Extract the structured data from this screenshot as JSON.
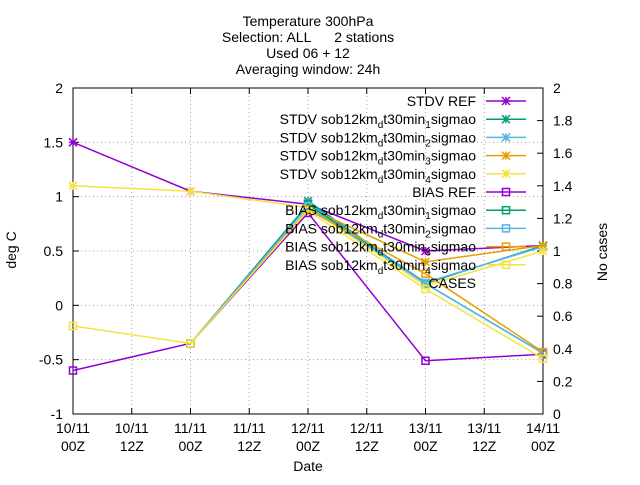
{
  "chart_data": {
    "type": "line",
    "title_lines": [
      "Temperature 300hPa",
      "Selection: ALL      2 stations",
      "Used 06 + 12",
      "Averaging window: 24h"
    ],
    "xlabel": "Date",
    "ylabel": "deg C",
    "y2label": "No cases",
    "x_ticks": [
      {
        "x": 0,
        "l1": "10/11",
        "l2": "00Z"
      },
      {
        "x": 1,
        "l1": "10/11",
        "l2": "12Z"
      },
      {
        "x": 2,
        "l1": "11/11",
        "l2": "00Z"
      },
      {
        "x": 3,
        "l1": "11/11",
        "l2": "12Z"
      },
      {
        "x": 4,
        "l1": "12/11",
        "l2": "00Z"
      },
      {
        "x": 5,
        "l1": "12/11",
        "l2": "12Z"
      },
      {
        "x": 6,
        "l1": "13/11",
        "l2": "00Z"
      },
      {
        "x": 7,
        "l1": "13/11",
        "l2": "12Z"
      },
      {
        "x": 8,
        "l1": "14/11",
        "l2": "00Z"
      }
    ],
    "xlim": [
      0,
      8
    ],
    "ylim": [
      -1,
      2
    ],
    "y_ticks": [
      "-1",
      "-0.5",
      "0",
      "0.5",
      "1",
      "1.5",
      "2"
    ],
    "y2lim": [
      0,
      2
    ],
    "y2_ticks": [
      "0",
      "0.2",
      "0.4",
      "0.6",
      "0.8",
      "1",
      "1.2",
      "1.4",
      "1.6",
      "1.8",
      "2"
    ],
    "grid": true,
    "legend_position": "top-right",
    "x": [
      0,
      2,
      4,
      6,
      8
    ],
    "series": [
      {
        "name": "STDV REF",
        "color": "#9400d3",
        "marker": "star",
        "axis": "y1",
        "values": [
          1.5,
          1.05,
          0.93,
          0.5,
          0.55
        ]
      },
      {
        "name": "STDV sob12km_dt30min_1sigmao",
        "color": "#009e73",
        "marker": "star",
        "axis": "y1",
        "values": [
          null,
          null,
          0.96,
          0.2,
          0.55
        ]
      },
      {
        "name": "STDV sob12km_dt30min_2sigmao",
        "color": "#56b4e9",
        "marker": "star",
        "axis": "y1",
        "values": [
          null,
          null,
          0.94,
          0.21,
          0.54
        ]
      },
      {
        "name": "STDV sob12km_dt30min_3sigmao",
        "color": "#e69f00",
        "marker": "star",
        "axis": "y1",
        "values": [
          null,
          null,
          0.9,
          0.4,
          0.55
        ]
      },
      {
        "name": "STDV sob12km_dt30min_4sigmao",
        "color": "#f0e442",
        "marker": "star",
        "axis": "y1",
        "values": [
          1.1,
          1.05,
          0.9,
          0.18,
          0.5
        ]
      },
      {
        "name": "BIAS REF",
        "color": "#9400d3",
        "marker": "square",
        "axis": "y1",
        "values": [
          -0.6,
          -0.35,
          0.85,
          -0.51,
          -0.45
        ]
      },
      {
        "name": "BIAS sob12km_dt30min_1sigmao",
        "color": "#009e73",
        "marker": "square",
        "axis": "y1",
        "values": [
          null,
          -0.35,
          0.93,
          0.2,
          -0.44
        ]
      },
      {
        "name": "BIAS sob12km_dt30min_2sigmao",
        "color": "#56b4e9",
        "marker": "square",
        "axis": "y1",
        "values": [
          null,
          -0.35,
          0.91,
          0.2,
          -0.44
        ]
      },
      {
        "name": "BIAS sob12km_dt30min_3sigmao",
        "color": "#e69f00",
        "marker": "square",
        "axis": "y1",
        "values": [
          null,
          -0.35,
          0.88,
          0.29,
          -0.43
        ]
      },
      {
        "name": "BIAS sob12km_dt30min_4sigmao",
        "color": "#f0e442",
        "marker": "square",
        "axis": "y1",
        "values": [
          -0.19,
          -0.35,
          0.87,
          0.15,
          -0.49
        ]
      }
    ],
    "legend": [
      {
        "pre": "STDV REF",
        "sub": "",
        "post": ""
      },
      {
        "pre": "STDV sob12km",
        "sub": "d",
        "post": "t30min",
        "sub2": "1",
        "post2": "sigmao"
      },
      {
        "pre": "STDV sob12km",
        "sub": "d",
        "post": "t30min",
        "sub2": "2",
        "post2": "sigmao"
      },
      {
        "pre": "STDV sob12km",
        "sub": "d",
        "post": "t30min",
        "sub2": "3",
        "post2": "sigmao"
      },
      {
        "pre": "STDV sob12km",
        "sub": "d",
        "post": "t30min",
        "sub2": "4",
        "post2": "sigmao"
      },
      {
        "pre": "BIAS REF",
        "sub": "",
        "post": ""
      },
      {
        "pre": "BIAS sob12km",
        "sub": "d",
        "post": "t30min",
        "sub2": "1",
        "post2": "sigmao"
      },
      {
        "pre": "BIAS sob12km",
        "sub": "d",
        "post": "t30min",
        "sub2": "2",
        "post2": "sigmao"
      },
      {
        "pre": "BIAS sob12km",
        "sub": "d",
        "post": "t30min",
        "sub2": "3",
        "post2": "sigmao"
      },
      {
        "pre": "BIAS sob12km",
        "sub": "d",
        "post": "t30min",
        "sub2": "4",
        "post2": "sigmao"
      },
      {
        "pre": "CASES",
        "sub": "",
        "post": ""
      }
    ]
  }
}
